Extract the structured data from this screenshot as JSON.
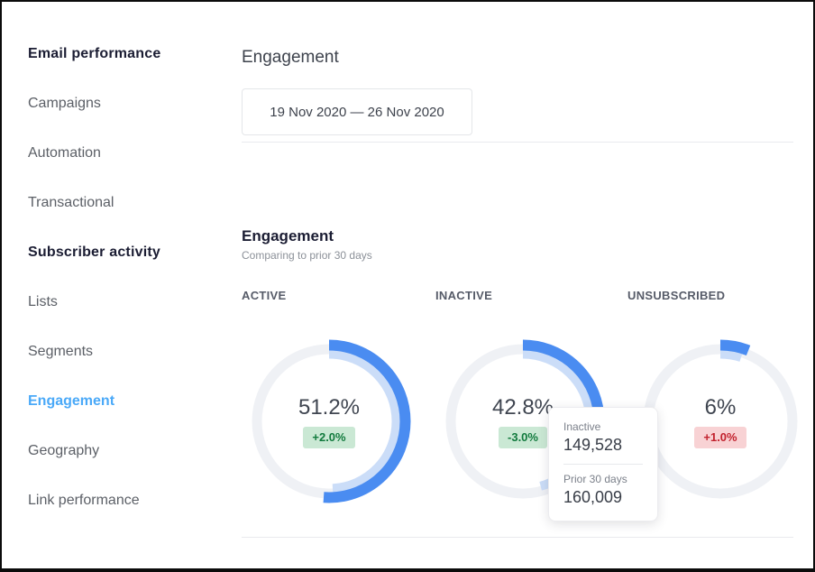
{
  "sidebar": {
    "section1": {
      "header": "Email performance",
      "items": [
        {
          "label": "Campaigns"
        },
        {
          "label": "Automation"
        },
        {
          "label": "Transactional"
        }
      ]
    },
    "section2": {
      "header": "Subscriber activity",
      "items": [
        {
          "label": "Lists"
        },
        {
          "label": "Segments"
        },
        {
          "label": "Engagement",
          "active": true
        },
        {
          "label": "Geography"
        },
        {
          "label": "Link performance"
        }
      ]
    },
    "active_item": "Engagement"
  },
  "header": {
    "title": "Engagement",
    "date_range": "19 Nov 2020 — 26 Nov 2020"
  },
  "section": {
    "title": "Engagement",
    "subtitle": "Comparing to prior 30 days"
  },
  "tooltip": {
    "label": "Inactive",
    "value": "149,528",
    "prior_label": "Prior 30 days",
    "prior_value": "160,009"
  },
  "colors": {
    "sidebar_active": "#4aa9f8",
    "positive_badge_bg": "#cae8d4",
    "positive_badge_text": "#117a3d",
    "negative_badge_bg": "#f8d2d4",
    "negative_badge_text": "#c2222e"
  },
  "chart_data": {
    "type": "donut",
    "title": "Engagement",
    "subtitle": "Comparing to prior 30 days",
    "date_range": "19 Nov 2020 — 26 Nov 2020",
    "charts": [
      {
        "label": "ACTIVE",
        "value_pct": 51.2,
        "prior_pct": 49.2,
        "display_value": "51.2%",
        "change": "+2.0%",
        "change_direction": "positive"
      },
      {
        "label": "INACTIVE",
        "value_pct": 42.8,
        "prior_pct": 45.8,
        "display_value": "42.8%",
        "change": "-3.0%",
        "change_direction": "positive"
      },
      {
        "label": "UNSUBSCRIBED",
        "value_pct": 6.0,
        "prior_pct": 5.0,
        "display_value": "6%",
        "change": "+1.0%",
        "change_direction": "negative"
      }
    ],
    "colors": {
      "current": "#4a8cf1",
      "prior": "#cbddf8",
      "track": "#eff1f5"
    },
    "legend": {
      "current_label": "Inactive",
      "prior_label": "Prior 30 days"
    }
  }
}
